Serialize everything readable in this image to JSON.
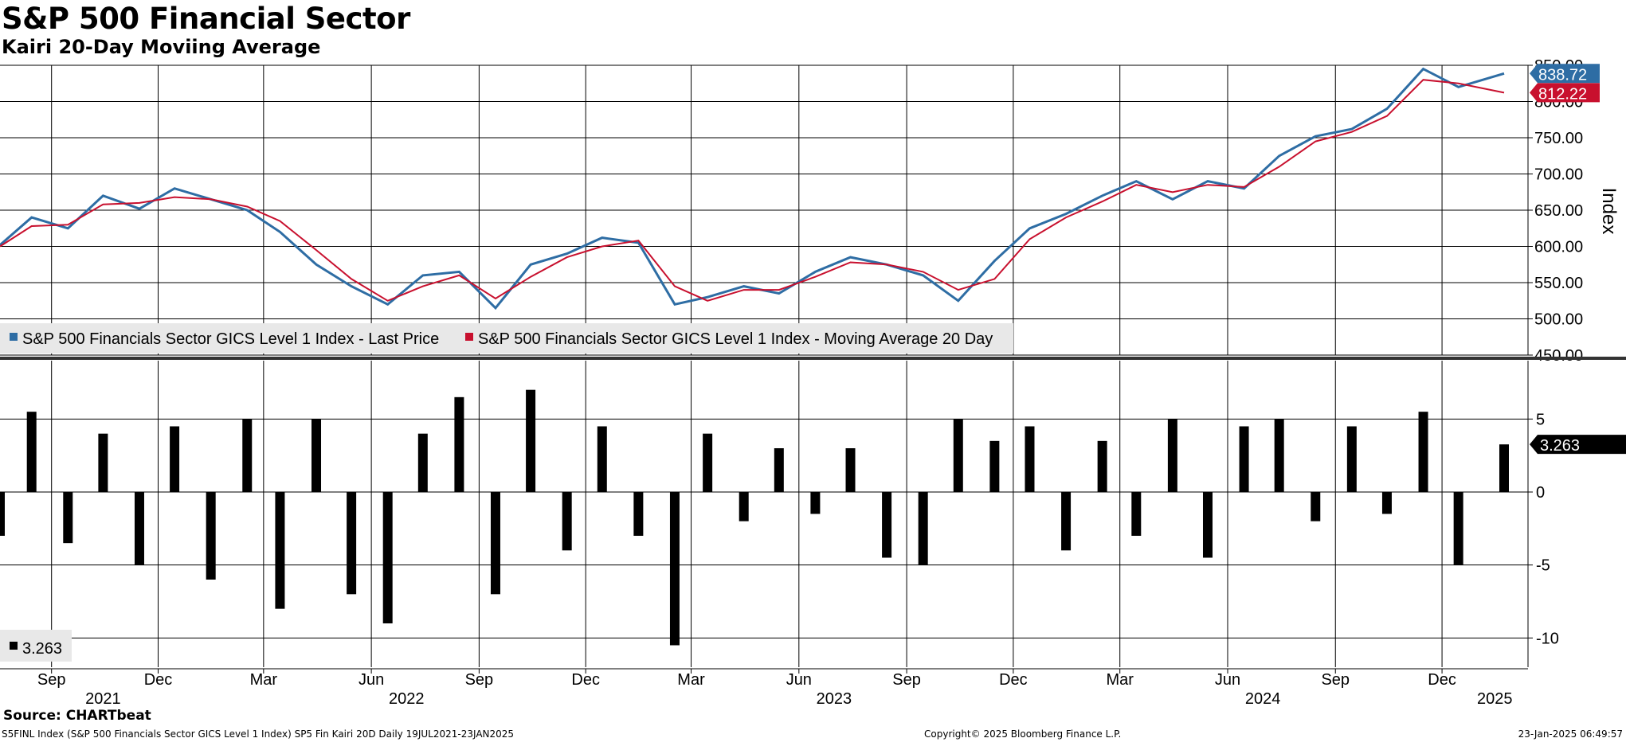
{
  "header": {
    "title": "S&P 500 Financial Sector",
    "subtitle": "Kairi 20-Day Moviing Average"
  },
  "footer": {
    "source": "Source: CHARTbeat",
    "ticker_line": "S5FINL Index (S&P 500 Financials Sector GICS Level 1 Index) SP5 Fin Kairi 20D  Daily 19JUL2021-23JAN2025",
    "copyright": "Copyright© 2025 Bloomberg Finance L.P.",
    "timestamp": "23-Jan-2025 06:49:57"
  },
  "colors": {
    "price": "#2e6da4",
    "moving_average": "#c8102e",
    "kairi": "#000000",
    "grid": "#000000"
  },
  "chart_data": [
    {
      "type": "line",
      "ylabel": "Index",
      "ylim": [
        450,
        850
      ],
      "y_ticks": [
        "450.00",
        "500.00",
        "550.00",
        "600.00",
        "650.00",
        "700.00",
        "750.00",
        "800.00",
        "850.00"
      ],
      "grid": true,
      "legend_position": "bottom-left",
      "x": [
        "2021-07-19",
        "2021-08-15",
        "2021-09-15",
        "2021-10-15",
        "2021-11-15",
        "2021-12-15",
        "2022-01-15",
        "2022-02-15",
        "2022-03-15",
        "2022-04-15",
        "2022-05-15",
        "2022-06-15",
        "2022-07-15",
        "2022-08-15",
        "2022-09-15",
        "2022-10-15",
        "2022-11-15",
        "2022-12-15",
        "2023-01-15",
        "2023-02-15",
        "2023-03-15",
        "2023-04-15",
        "2023-05-15",
        "2023-06-15",
        "2023-07-15",
        "2023-08-15",
        "2023-09-15",
        "2023-10-15",
        "2023-11-15",
        "2023-12-15",
        "2024-01-15",
        "2024-02-15",
        "2024-03-15",
        "2024-04-15",
        "2024-05-15",
        "2024-06-15",
        "2024-07-15",
        "2024-08-15",
        "2024-09-15",
        "2024-10-15",
        "2024-11-15",
        "2024-12-15",
        "2025-01-23"
      ],
      "series": [
        {
          "name": "S&P 500 Financials Sector GICS Level 1 Index - Last Price",
          "color": "#2e6da4",
          "values": [
            602,
            640,
            625,
            670,
            652,
            680,
            665,
            650,
            620,
            575,
            545,
            520,
            560,
            565,
            515,
            575,
            590,
            612,
            605,
            520,
            530,
            545,
            535,
            565,
            585,
            575,
            560,
            525,
            580,
            625,
            645,
            670,
            690,
            665,
            690,
            680,
            725,
            752,
            762,
            790,
            845,
            820,
            838.72
          ]
        },
        {
          "name": "S&P 500 Financials Sector GICS Level 1 Index - Moving Average 20 Day",
          "color": "#c8102e",
          "values": [
            600,
            628,
            630,
            658,
            660,
            668,
            665,
            655,
            635,
            595,
            555,
            525,
            545,
            560,
            528,
            558,
            585,
            600,
            608,
            545,
            525,
            540,
            540,
            558,
            578,
            575,
            565,
            540,
            555,
            610,
            640,
            662,
            685,
            675,
            685,
            682,
            710,
            745,
            758,
            780,
            830,
            825,
            812.22
          ]
        }
      ],
      "last_labels": [
        "838.72",
        "812.22"
      ],
      "legend": [
        "S&P 500 Financials Sector GICS Level 1 Index - Last Price",
        "S&P 500 Financials Sector GICS Level 1 Index - Moving Average 20 Day"
      ]
    },
    {
      "type": "bar",
      "ylim": [
        -12,
        9
      ],
      "y_ticks": [
        "-10",
        "-5",
        "0",
        "5"
      ],
      "grid": true,
      "legend_position": "bottom-left",
      "x": [
        "2021-07-19",
        "2021-08-15",
        "2021-09-15",
        "2021-10-15",
        "2021-11-15",
        "2021-12-15",
        "2022-01-15",
        "2022-02-15",
        "2022-03-15",
        "2022-04-15",
        "2022-05-15",
        "2022-06-15",
        "2022-07-15",
        "2022-08-15",
        "2022-09-15",
        "2022-10-15",
        "2022-11-15",
        "2022-12-15",
        "2023-01-15",
        "2023-02-15",
        "2023-03-15",
        "2023-04-15",
        "2023-05-15",
        "2023-06-15",
        "2023-07-15",
        "2023-08-15",
        "2023-09-15",
        "2023-10-15",
        "2023-11-15",
        "2023-12-15",
        "2024-01-15",
        "2024-02-15",
        "2024-03-15",
        "2024-04-15",
        "2024-05-15",
        "2024-06-15",
        "2024-07-15",
        "2024-08-15",
        "2024-09-15",
        "2024-10-15",
        "2024-11-15",
        "2024-12-15",
        "2025-01-23"
      ],
      "series": [
        {
          "name": "",
          "values": [
            -3,
            5.5,
            -3.5,
            4,
            -5,
            4.5,
            -6,
            5,
            -8,
            5,
            -7,
            -9,
            4,
            6.5,
            -7,
            7,
            -4,
            4.5,
            -3,
            -10.5,
            4,
            -2,
            3,
            -1.5,
            3,
            -4.5,
            -5,
            5,
            3.5,
            4.5,
            -4,
            3.5,
            -3,
            5,
            -4.5,
            4.5,
            5,
            -2,
            4.5,
            -1.5,
            5.5,
            -5,
            3.263
          ]
        }
      ],
      "last_label": "3.263",
      "legend": [
        "3.263"
      ]
    }
  ],
  "x_axis": {
    "months": [
      {
        "label": "Sep",
        "date": "2021-09-01"
      },
      {
        "label": "Dec",
        "date": "2021-12-01"
      },
      {
        "label": "Mar",
        "date": "2022-03-01"
      },
      {
        "label": "Jun",
        "date": "2022-06-01"
      },
      {
        "label": "Sep",
        "date": "2022-09-01"
      },
      {
        "label": "Dec",
        "date": "2022-12-01"
      },
      {
        "label": "Mar",
        "date": "2023-03-01"
      },
      {
        "label": "Jun",
        "date": "2023-06-01"
      },
      {
        "label": "Sep",
        "date": "2023-09-01"
      },
      {
        "label": "Dec",
        "date": "2023-12-01"
      },
      {
        "label": "Mar",
        "date": "2024-03-01"
      },
      {
        "label": "Jun",
        "date": "2024-06-01"
      },
      {
        "label": "Sep",
        "date": "2024-09-01"
      },
      {
        "label": "Dec",
        "date": "2024-12-01"
      }
    ],
    "years": [
      {
        "label": "2021",
        "date": "2021-10-15"
      },
      {
        "label": "2022",
        "date": "2022-07-01"
      },
      {
        "label": "2023",
        "date": "2023-07-01"
      },
      {
        "label": "2024",
        "date": "2024-07-01"
      },
      {
        "label": "2025",
        "date": "2025-01-15"
      }
    ]
  }
}
